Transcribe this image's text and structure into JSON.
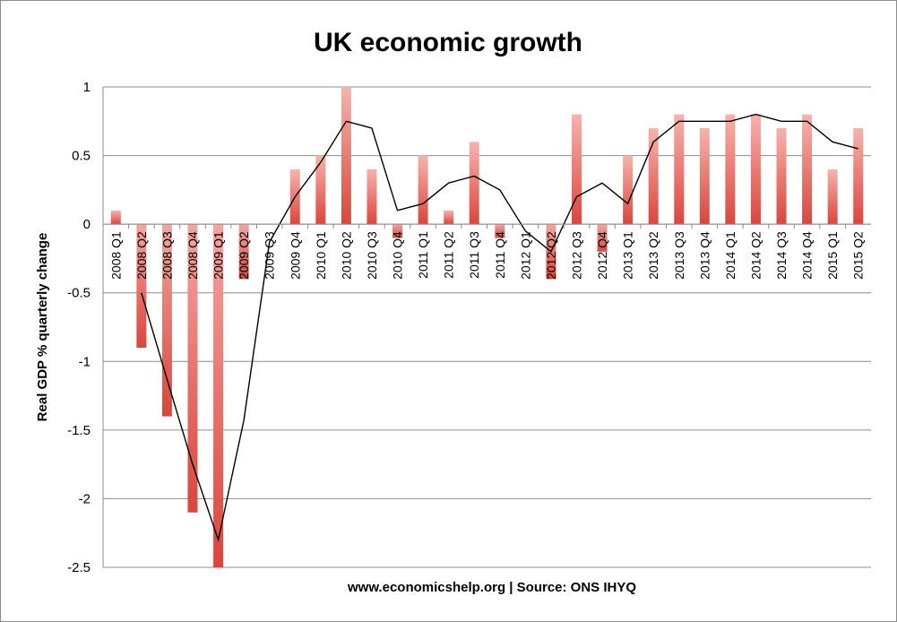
{
  "chart_data": {
    "type": "bar",
    "title": "UK economic growth",
    "xlabel": "www.economicshelp.org | Source: ONS  IHYQ",
    "ylabel": "Real GDP % quarterly change",
    "ylim": [
      -2.5,
      1
    ],
    "yticks": [
      1,
      0.5,
      0,
      -0.5,
      -1,
      -1.5,
      -2,
      -2.5
    ],
    "grid": true,
    "legend": "none",
    "categories": [
      "2008 Q1",
      "2008 Q2",
      "2008 Q3",
      "2008 Q4",
      "2009 Q1",
      "2009 Q2",
      "2009 Q3",
      "2009 Q4",
      "2010 Q1",
      "2010 Q2",
      "2010 Q3",
      "2010 Q4",
      "2011 Q1",
      "2011 Q2",
      "2011 Q3",
      "2011 Q4",
      "2012 Q1",
      "2012 Q2",
      "2012 Q3",
      "2012 Q4",
      "2013 Q1",
      "2013 Q2",
      "2013 Q3",
      "2013 Q4",
      "2014 Q1",
      "2014 Q2",
      "2014 Q3",
      "2014 Q4",
      "2015 Q1",
      "2015 Q2"
    ],
    "series": [
      {
        "type": "bar",
        "color": "#e05a50",
        "values": [
          0.1,
          -0.9,
          -1.4,
          -2.1,
          -2.5,
          -0.4,
          0.0,
          0.4,
          0.5,
          1.0,
          0.4,
          -0.1,
          0.5,
          0.1,
          0.6,
          -0.1,
          0.0,
          -0.4,
          0.8,
          -0.2,
          0.5,
          0.7,
          0.8,
          0.7,
          0.8,
          0.8,
          0.7,
          0.8,
          0.4,
          0.7
        ]
      },
      {
        "type": "line",
        "color": "#000000",
        "values": [
          null,
          -0.5,
          -1.13,
          -1.75,
          -2.3,
          -1.43,
          -0.13,
          0.2,
          0.45,
          0.75,
          0.7,
          0.1,
          0.15,
          0.3,
          0.35,
          0.25,
          -0.05,
          -0.2,
          0.2,
          0.3,
          0.15,
          0.6,
          0.75,
          0.75,
          0.75,
          0.8,
          0.75,
          0.75,
          0.6,
          0.55
        ]
      }
    ]
  }
}
